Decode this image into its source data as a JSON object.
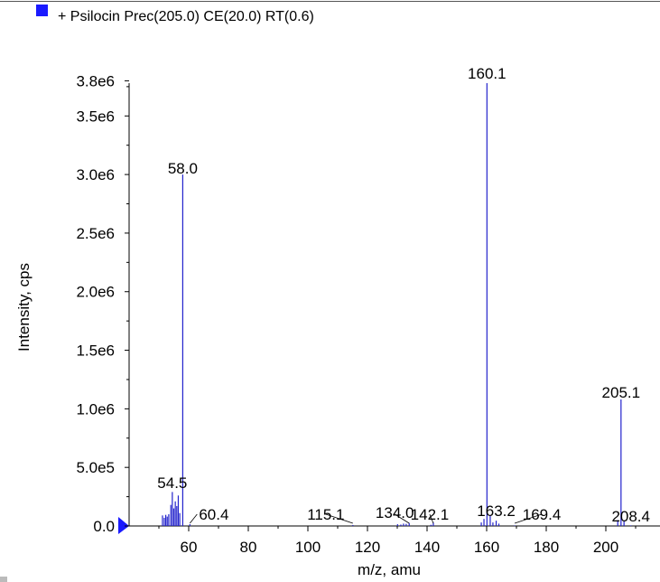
{
  "chart_data": {
    "type": "bar",
    "title": "+ Psilocin Prec(205.0) CE(20.0) RT(0.6)",
    "xlabel": "m/z, amu",
    "ylabel": "Intensity, cps",
    "xlim": [
      39,
      217
    ],
    "ylim": [
      0,
      3850000
    ],
    "x_ticks": [
      60,
      80,
      100,
      120,
      140,
      160,
      180,
      200
    ],
    "x_tick_labels": [
      "60",
      "80",
      "100",
      "120",
      "140",
      "160",
      "180",
      "200"
    ],
    "y_ticks": [
      0,
      500000,
      1000000,
      1500000,
      2000000,
      2500000,
      3000000,
      3500000,
      3800000
    ],
    "y_tick_labels": [
      "0.0",
      "5.0e5",
      "1.0e6",
      "1.5e6",
      "2.0e6",
      "2.5e6",
      "3.0e6",
      "3.5e6",
      "3.8e6"
    ],
    "series_color": "#2222cc",
    "legend_color": "#1a1aff",
    "peaks": [
      {
        "x": 51.2,
        "y": 90000
      },
      {
        "x": 51.8,
        "y": 70000
      },
      {
        "x": 52.3,
        "y": 95000
      },
      {
        "x": 52.8,
        "y": 80000
      },
      {
        "x": 53.3,
        "y": 100000
      },
      {
        "x": 54.0,
        "y": 180000
      },
      {
        "x": 54.5,
        "y": 290000
      },
      {
        "x": 55.0,
        "y": 150000
      },
      {
        "x": 55.5,
        "y": 210000
      },
      {
        "x": 56.0,
        "y": 170000
      },
      {
        "x": 56.5,
        "y": 260000
      },
      {
        "x": 57.0,
        "y": 110000
      },
      {
        "x": 58.0,
        "y": 3000000
      },
      {
        "x": 60.4,
        "y": 15000
      },
      {
        "x": 115.1,
        "y": 8000
      },
      {
        "x": 130.1,
        "y": 15000
      },
      {
        "x": 131.2,
        "y": 12000
      },
      {
        "x": 132.1,
        "y": 20000
      },
      {
        "x": 133.0,
        "y": 18000
      },
      {
        "x": 134.0,
        "y": 25000
      },
      {
        "x": 141.3,
        "y": 10000
      },
      {
        "x": 142.1,
        "y": 30000
      },
      {
        "x": 158.2,
        "y": 30000
      },
      {
        "x": 159.1,
        "y": 60000
      },
      {
        "x": 160.1,
        "y": 3780000
      },
      {
        "x": 161.2,
        "y": 90000
      },
      {
        "x": 162.1,
        "y": 30000
      },
      {
        "x": 163.2,
        "y": 45000
      },
      {
        "x": 164.1,
        "y": 20000
      },
      {
        "x": 169.4,
        "y": 5000
      },
      {
        "x": 204.0,
        "y": 50000
      },
      {
        "x": 205.1,
        "y": 1080000
      },
      {
        "x": 206.1,
        "y": 40000
      },
      {
        "x": 208.4,
        "y": 5000
      }
    ],
    "peak_labels": [
      {
        "text": "54.5",
        "x": 54.5,
        "y": 290000
      },
      {
        "text": "58.0",
        "x": 58.0,
        "y": 3000000
      },
      {
        "text": "60.4",
        "x": 60.4,
        "y": 15000
      },
      {
        "text": "115.1",
        "x": 115.1,
        "y": 8000
      },
      {
        "text": "134.0",
        "x": 134.0,
        "y": 25000
      },
      {
        "text": "142.1",
        "x": 142.1,
        "y": 30000
      },
      {
        "text": "160.1",
        "x": 160.1,
        "y": 3780000
      },
      {
        "text": "163.2",
        "x": 163.2,
        "y": 45000
      },
      {
        "text": "169.4",
        "x": 169.4,
        "y": 5000
      },
      {
        "text": "205.1",
        "x": 205.1,
        "y": 1080000
      },
      {
        "text": "208.4",
        "x": 208.4,
        "y": 5000
      }
    ]
  }
}
